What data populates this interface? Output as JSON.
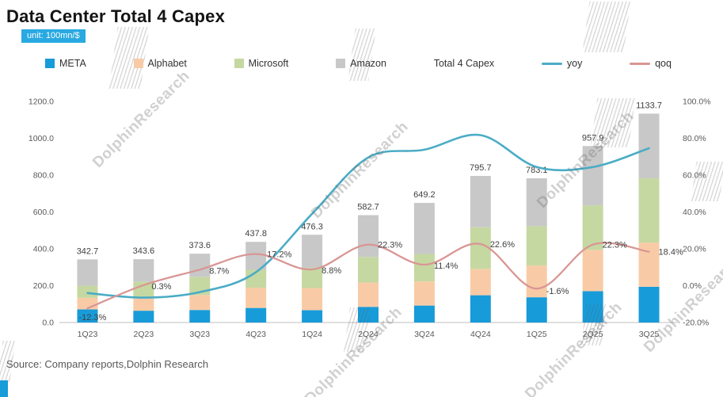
{
  "header": {
    "title": "Data Center Total 4 Capex",
    "unit_label": "unit: 100mn/$"
  },
  "footer": {
    "source": "Source: Company reports,Dolphin Research"
  },
  "watermark": {
    "text": "DolphinResearch"
  },
  "colors": {
    "meta": "#189BD9",
    "alphabet": "#F8CBA6",
    "microsoft": "#C6D8A2",
    "amazon": "#C8C8C8",
    "yoy": "#4BACC6",
    "qoq": "#D99694",
    "badge": "#29A9E1",
    "axis_text": "#595959",
    "data_label": "#404040"
  },
  "chart_data": {
    "type": "combo: stacked bar + line",
    "title": "Data Center Total 4 Capex",
    "unit": "100mn/$",
    "categories": [
      "1Q23",
      "2Q23",
      "3Q23",
      "4Q23",
      "1Q24",
      "2Q24",
      "3Q24",
      "4Q24",
      "1Q25",
      "2Q25",
      "3Q25"
    ],
    "bar_series": [
      {
        "name": "META",
        "color": "#189BD9",
        "values": [
          71,
          64,
          68,
          79,
          67,
          85,
          92,
          148,
          137,
          170,
          194
        ]
      },
      {
        "name": "Alphabet",
        "color": "#F8CBA6",
        "values": [
          63,
          69,
          81,
          110,
          120,
          132,
          131,
          143,
          172,
          224,
          240
        ]
      },
      {
        "name": "Microsoft",
        "color": "#C6D8A2",
        "values": [
          66,
          89,
          99,
          97,
          110,
          139,
          149,
          226,
          214,
          242,
          349
        ]
      },
      {
        "name": "Amazon",
        "color": "#C8C8C8",
        "values": [
          142.7,
          121.6,
          125.6,
          151.8,
          179.3,
          226.7,
          277.2,
          278.7,
          260.1,
          321.9,
          350.7
        ]
      }
    ],
    "totals": [
      342.7,
      343.6,
      373.6,
      437.8,
      476.3,
      582.7,
      649.2,
      795.7,
      783.1,
      957.9,
      1133.7
    ],
    "line_series": [
      {
        "name": "yoy",
        "color": "#4BACC6",
        "axis": "right",
        "show_labels": false,
        "values": [
          -4.0,
          -6.5,
          -3.5,
          7.3,
          39.0,
          69.6,
          73.8,
          81.7,
          64.4,
          64.4,
          74.6
        ]
      },
      {
        "name": "qoq",
        "color": "#D99694",
        "axis": "right",
        "show_labels": true,
        "values": [
          -12.3,
          0.3,
          8.7,
          17.2,
          8.8,
          22.3,
          11.4,
          22.6,
          -1.6,
          22.3,
          18.4
        ],
        "labels": [
          "-12.3%",
          "0.3%",
          "8.7%",
          "17.2%",
          "8.8%",
          "22.3%",
          "11.4%",
          "22.6%",
          "-1.6%",
          "22.3%",
          "18.4%"
        ]
      }
    ],
    "left_axis": {
      "min": 0,
      "max": 1200,
      "step": 200,
      "ticks": [
        {
          "v": 0,
          "label": "0.0"
        },
        {
          "v": 200,
          "label": "200.0"
        },
        {
          "v": 400,
          "label": "400.0"
        },
        {
          "v": 600,
          "label": "600.0"
        },
        {
          "v": 800,
          "label": "800.0"
        },
        {
          "v": 1000,
          "label": "1000.0"
        },
        {
          "v": 1200,
          "label": "1200.0"
        }
      ]
    },
    "right_axis": {
      "min": -20,
      "max": 100,
      "step": 20,
      "ticks": [
        {
          "v": -20,
          "label": "-20.0%"
        },
        {
          "v": 0,
          "label": "0.0%"
        },
        {
          "v": 20,
          "label": "20.0%"
        },
        {
          "v": 40,
          "label": "40.0%"
        },
        {
          "v": 60,
          "label": "60.0%"
        },
        {
          "v": 80,
          "label": "80.0%"
        },
        {
          "v": 100,
          "label": "100.0%"
        }
      ]
    },
    "grid": "off",
    "legend_position": "top",
    "legend": [
      {
        "label": "META",
        "marker": "square",
        "color": "#189BD9"
      },
      {
        "label": "Alphabet",
        "marker": "square",
        "color": "#F8CBA6"
      },
      {
        "label": "Microsoft",
        "marker": "square",
        "color": "#C6D8A2"
      },
      {
        "label": "Amazon",
        "marker": "square",
        "color": "#C8C8C8"
      },
      {
        "label": "Total 4 Capex",
        "marker": "none",
        "color": ""
      },
      {
        "label": "yoy",
        "marker": "line",
        "color": "#4BACC6"
      },
      {
        "label": "qoq",
        "marker": "line",
        "color": "#D99694"
      }
    ]
  }
}
